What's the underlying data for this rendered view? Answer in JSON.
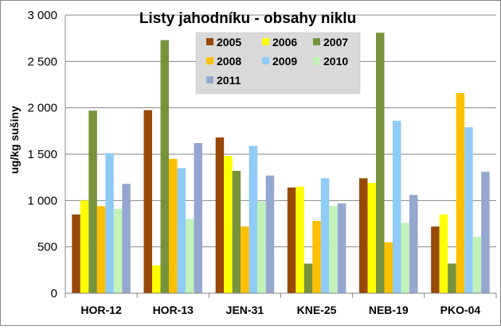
{
  "chart_data": {
    "type": "bar",
    "title": "Listy jahodníku - obsahy niklu",
    "ylabel": "ug/kg sušiny",
    "xlabel": "",
    "ylim": [
      0,
      3000
    ],
    "yticks": [
      0,
      500,
      1000,
      1500,
      2000,
      2500,
      3000
    ],
    "ytick_labels": [
      "0",
      "500",
      "1 000",
      "1 500",
      "2 000",
      "2 500",
      "3 000"
    ],
    "grid": true,
    "legend_position": "top-center",
    "categories": [
      "HOR-12",
      "HOR-13",
      "JEN-31",
      "KNE-25",
      "NEB-19",
      "PKO-04"
    ],
    "series": [
      {
        "name": "2005",
        "color": "#984807",
        "values": [
          850,
          1975,
          1680,
          1140,
          1240,
          720
        ]
      },
      {
        "name": "2006",
        "color": "#ffff00",
        "values": [
          1000,
          300,
          1480,
          1150,
          1190,
          850
        ]
      },
      {
        "name": "2007",
        "color": "#77933c",
        "values": [
          1970,
          2730,
          1320,
          320,
          2810,
          320
        ]
      },
      {
        "name": "2008",
        "color": "#ffc000",
        "values": [
          940,
          1450,
          720,
          780,
          550,
          2160
        ]
      },
      {
        "name": "2009",
        "color": "#8ecbf7",
        "values": [
          1510,
          1350,
          1590,
          1240,
          1860,
          1790
        ]
      },
      {
        "name": "2010",
        "color": "#c3f2b8",
        "values": [
          910,
          800,
          990,
          940,
          760,
          610
        ]
      },
      {
        "name": "2011",
        "color": "#95a7cf",
        "values": [
          1180,
          1620,
          1270,
          970,
          1060,
          1310
        ]
      }
    ]
  }
}
